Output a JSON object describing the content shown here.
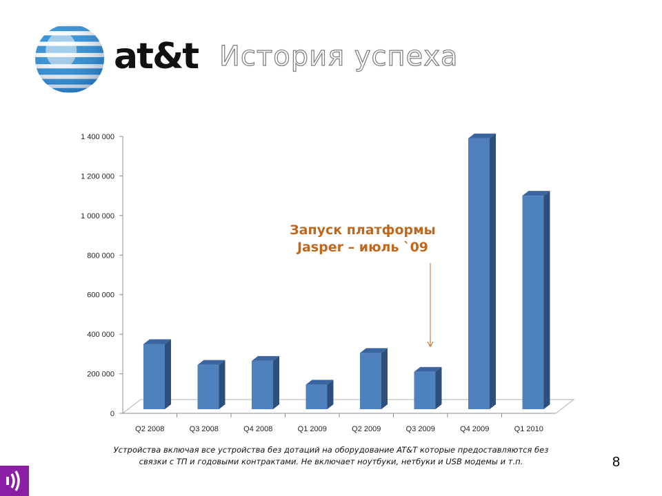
{
  "header": {
    "logo_text": "at&t",
    "title": "История успеха"
  },
  "footnote": {
    "line1": "Устройства включая все устройства без дотаций на оборудование AT&T которые предоставляются без",
    "line2": "связки с ТП и годовыми контрактами. Не включает ноутбуки, нетбуки и USB модемы и т.п."
  },
  "page_number": "8",
  "colors": {
    "bar_front": "#4f81bd",
    "bar_side": "#2d4f7c",
    "bar_top": "#3a65a0",
    "annotation": "#c0671a",
    "brand_purple": "#8a1fa6"
  },
  "chart_data": {
    "type": "bar",
    "style": "3d-column",
    "categories": [
      "Q2 2008",
      "Q3 2008",
      "Q4 2008",
      "Q1 2009",
      "Q2 2009",
      "Q3 2009",
      "Q4 2009",
      "Q1 2010"
    ],
    "values": [
      350000,
      245000,
      265000,
      145000,
      305000,
      210000,
      1390000,
      1100000
    ],
    "ylim": [
      0,
      1400000
    ],
    "yticks": [
      0,
      200000,
      400000,
      600000,
      800000,
      1000000,
      1200000,
      1400000
    ],
    "ytick_labels": [
      "0",
      "200 000",
      "400 000",
      "600 000",
      "800 000",
      "1 000 000",
      "1 200 000",
      "1 400 000"
    ],
    "grid": false,
    "legend": "none",
    "annotation": {
      "line1": "Запуск платформы",
      "line2": "Jasper – июль `09",
      "points_to": "Q3 2009"
    }
  }
}
